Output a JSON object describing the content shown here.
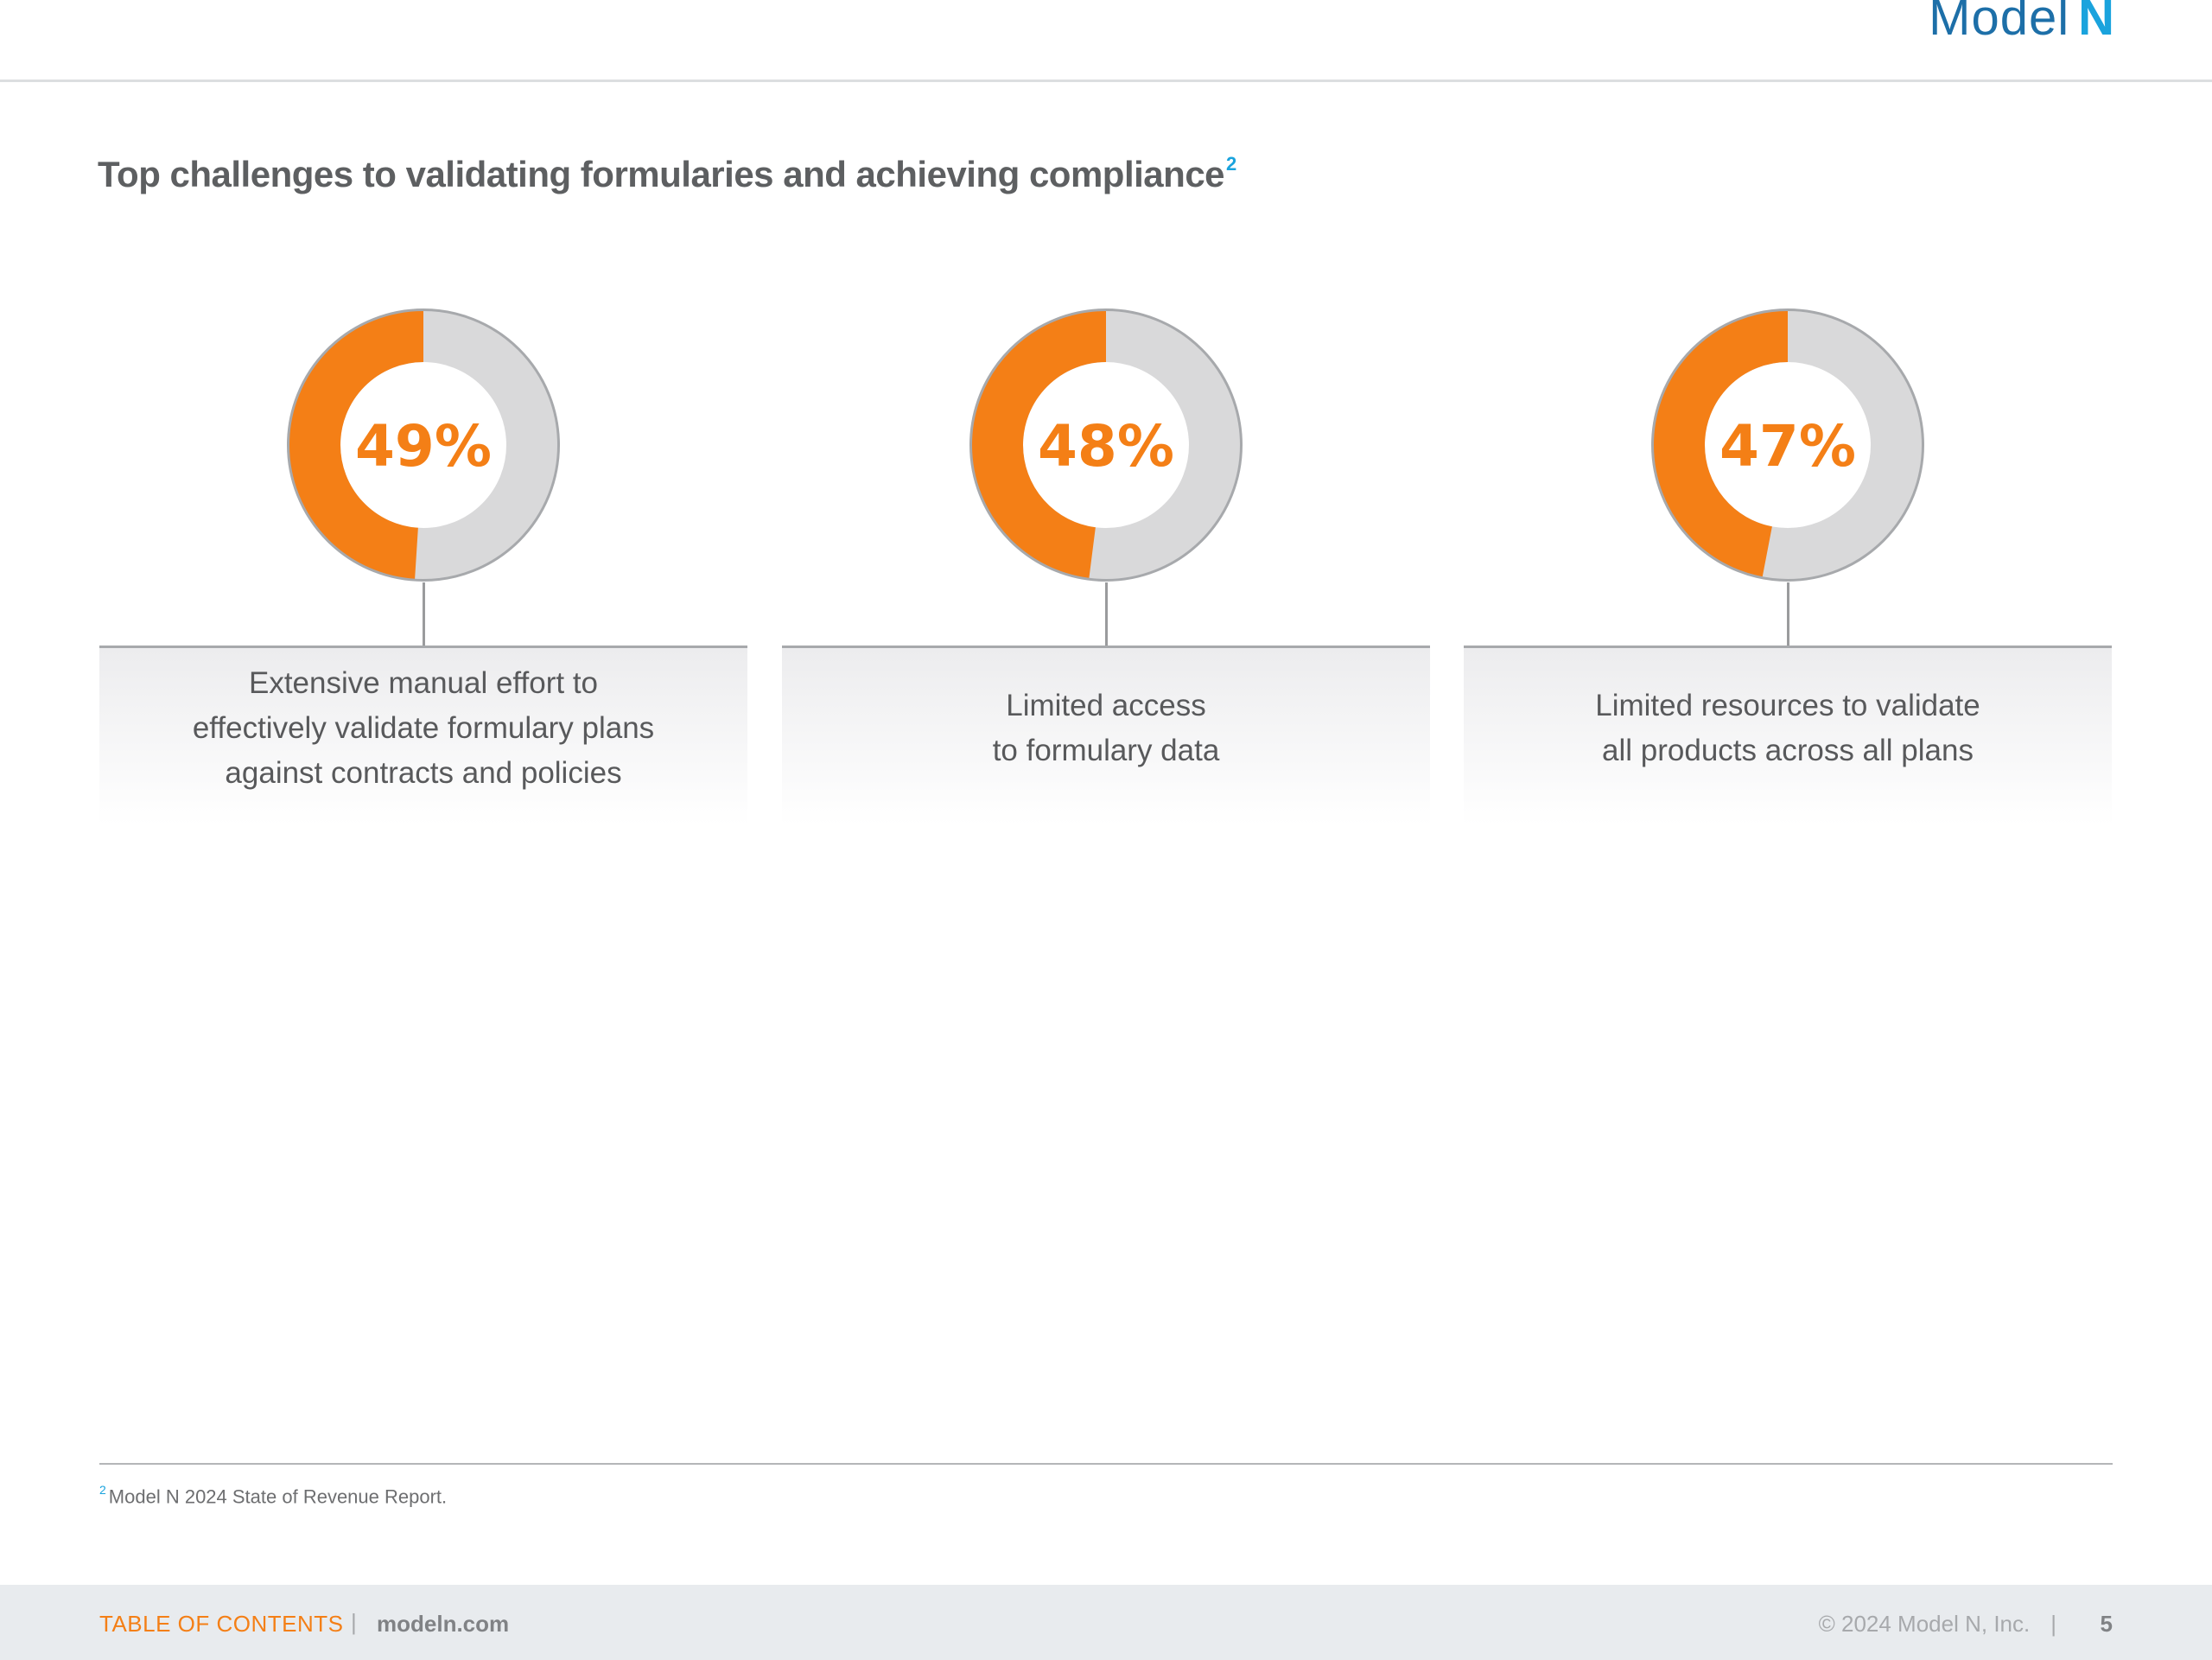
{
  "header": {
    "logo_text": "Model",
    "logo_mark": "N"
  },
  "title": {
    "text": "Top challenges to validating formularies and achieving compliance",
    "footnote_ref": "2"
  },
  "stats": [
    {
      "percent": 49,
      "label": "49%",
      "text": "Extensive manual effort to\neffectively validate formulary plans\nagainst contracts and policies"
    },
    {
      "percent": 48,
      "label": "48%",
      "text": "Limited access\nto formulary data"
    },
    {
      "percent": 47,
      "label": "47%",
      "text": "Limited resources to validate\nall products across all plans"
    }
  ],
  "colors": {
    "accent": "#f47f16",
    "track": "#d9d9da",
    "ring_border": "#a7a9ac",
    "brand_blue": "#1aa3dd"
  },
  "footnote": {
    "marker": "2",
    "text": "Model N 2024 State of Revenue Report."
  },
  "footer": {
    "toc": "TABLE OF CONTENTS",
    "separator": "|",
    "site": "modeln.com",
    "copyright": "© 2024 Model N, Inc.",
    "page": "5"
  }
}
